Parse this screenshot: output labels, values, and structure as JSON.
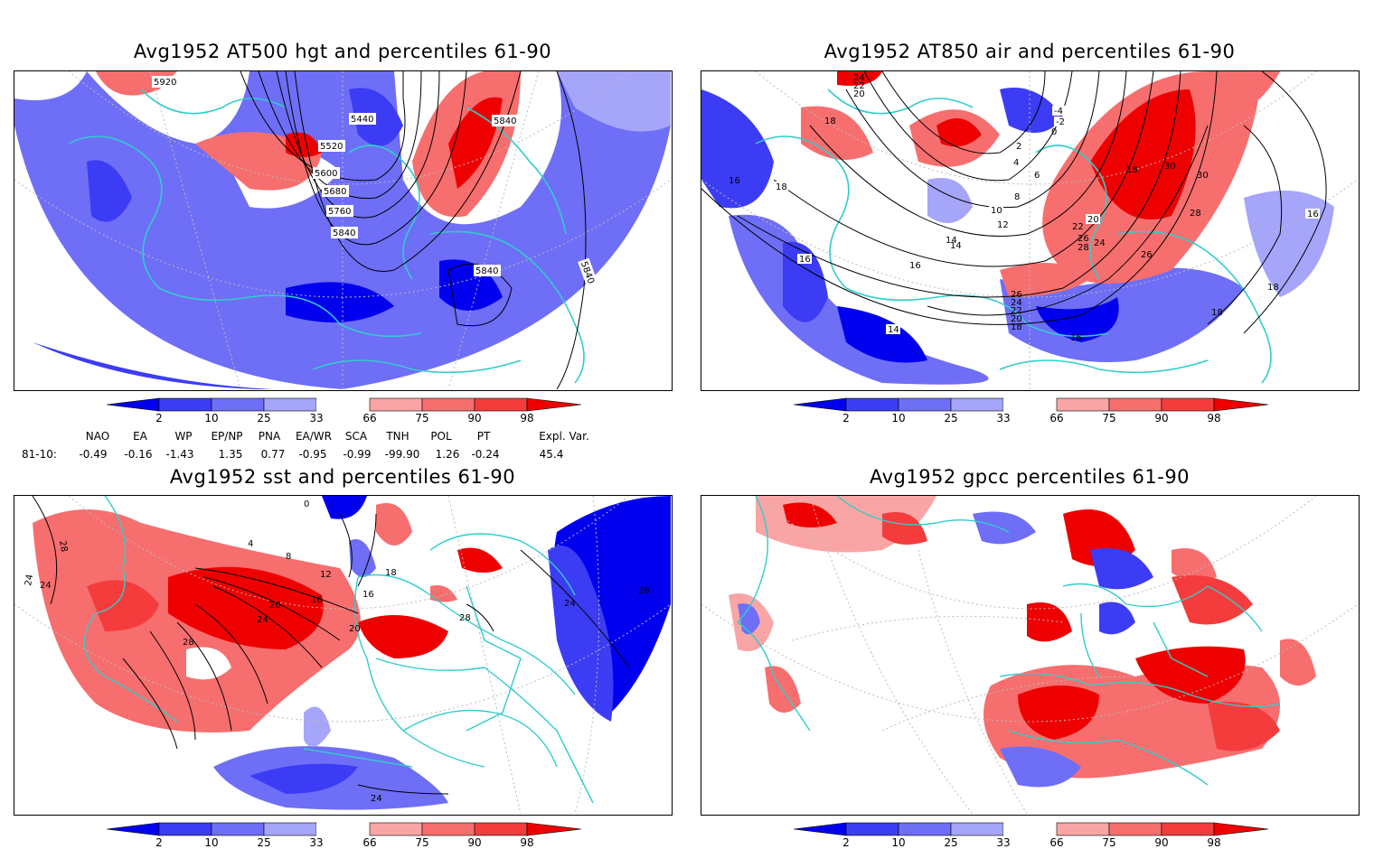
{
  "panels": [
    {
      "title": "Avg1952 AT500 hgt and percentiles 61-90",
      "contour_labels": [
        "5920",
        "5440",
        "5520",
        "5600",
        "5680",
        "5760",
        "5840",
        "5840",
        "5840",
        "5840"
      ]
    },
    {
      "title": "Avg1952 AT850 air and percentiles 61-90",
      "contour_labels": [
        "24",
        "22",
        "20",
        "18",
        "-4",
        "-2",
        "0",
        "2",
        "4",
        "6",
        "8",
        "10",
        "12",
        "14",
        "16",
        "18",
        "20",
        "22",
        "24",
        "26",
        "28",
        "30",
        "30",
        "28",
        "26",
        "16",
        "16",
        "18",
        "14",
        "16",
        "18",
        "18",
        "16",
        "26",
        "24",
        "22",
        "20",
        "18",
        "14"
      ]
    },
    {
      "title": "Avg1952 sst and percentiles 61-90",
      "contour_labels": [
        "28",
        "24",
        "0",
        "4",
        "8",
        "12",
        "16",
        "20",
        "24",
        "28",
        "16",
        "18",
        "20",
        "24",
        "28",
        "24",
        "28",
        "24"
      ]
    },
    {
      "title": "Avg1952 gpcc percentiles 61-90",
      "contour_labels": []
    }
  ],
  "colorbar": {
    "labels": [
      "2",
      "10",
      "25",
      "33",
      "66",
      "75",
      "90",
      "98"
    ],
    "colors": [
      "#0000ee",
      "#3c3cf5",
      "#6e6ef7",
      "#a5a5fa",
      "#ffffff",
      "#faa5a5",
      "#f76e6e",
      "#f53c3c",
      "#ee0000"
    ]
  },
  "indices": {
    "headers": [
      "NAO",
      "EA",
      "WP",
      "EP/NP",
      "PNA",
      "EA/WR",
      "SCA",
      "TNH",
      "POL",
      "PT",
      "Expl. Var."
    ],
    "row_label": "81-10:",
    "values": [
      "-0.49",
      "-0.16",
      "-1.43",
      "1.35",
      "0.77",
      "-0.95",
      "-0.99",
      "-99.90",
      "1.26",
      "-0.24",
      "45.4"
    ]
  },
  "colors": {
    "coast": "#33cccc",
    "contour": "#000000",
    "grid": "#bbbbbb"
  }
}
